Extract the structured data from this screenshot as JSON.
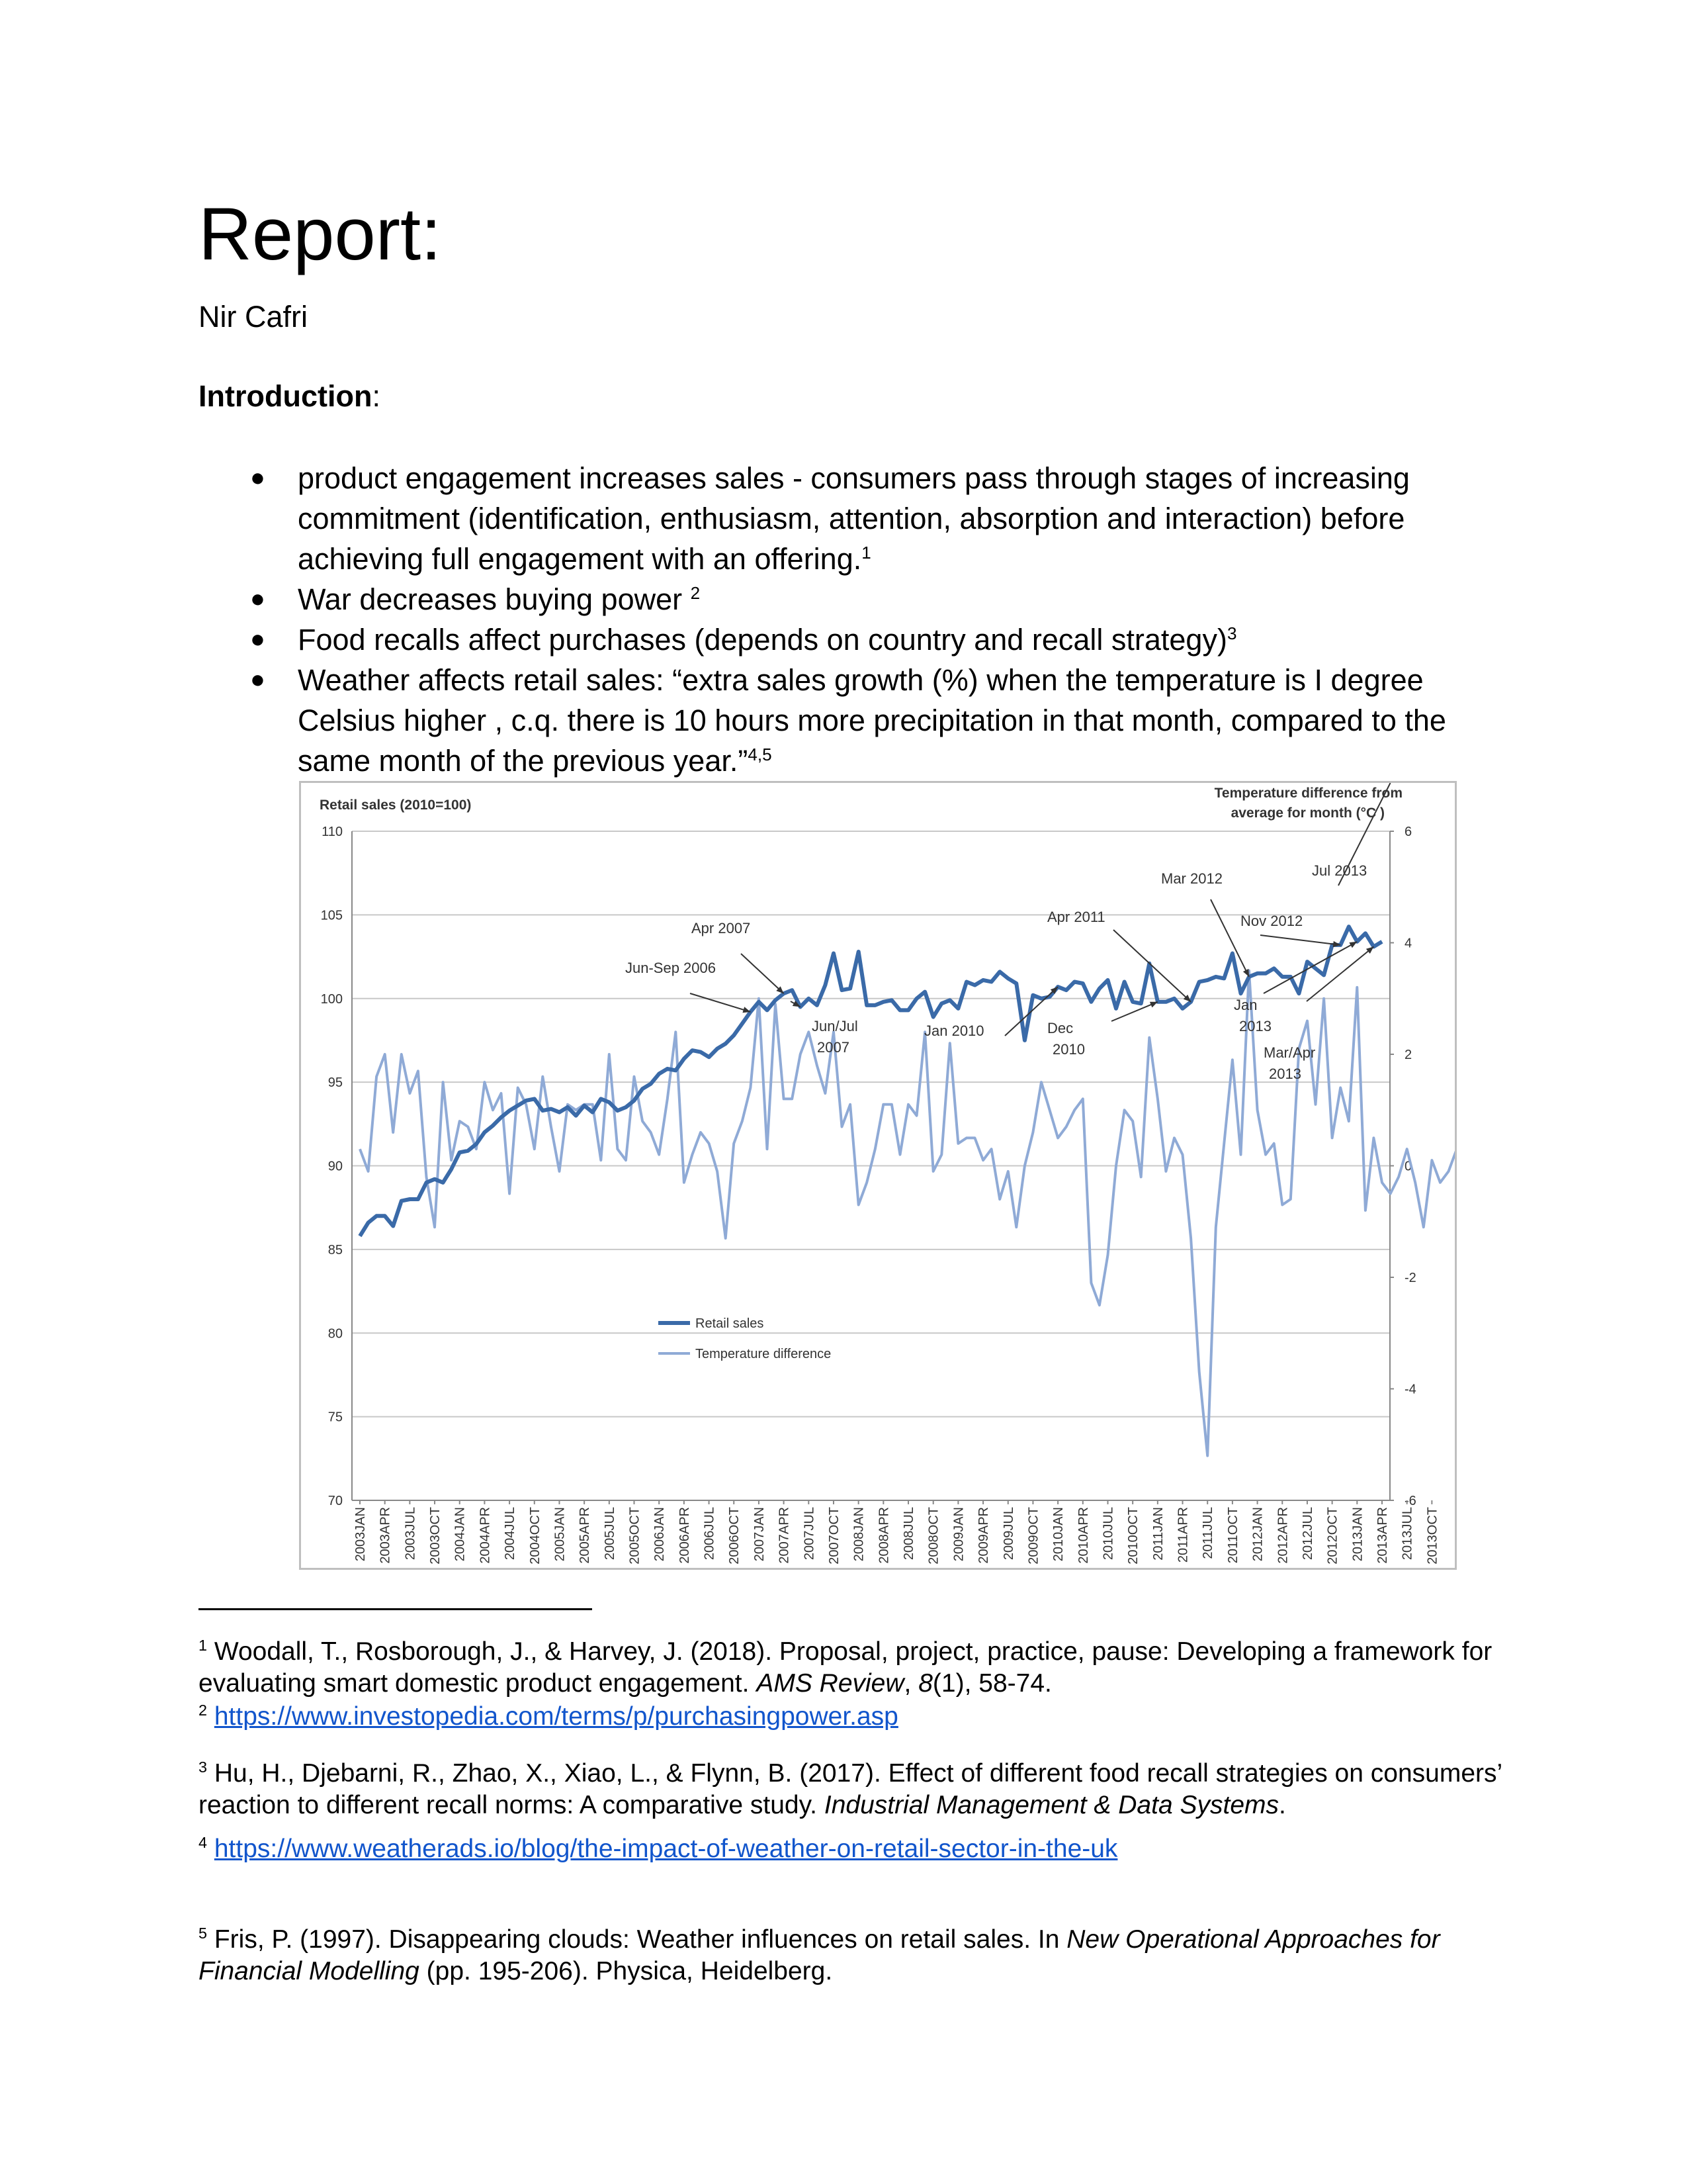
{
  "title": "Report:",
  "author": "Nir Cafri",
  "intro_heading": "Introduction",
  "intro_colon": ":",
  "bullet_glyph": "●",
  "bullets": [
    {
      "text": "product engagement increases sales - consumers pass through stages of increasing commitment (identification, enthusiasm, attention, absorption and interaction) before achieving full engagement with an offering.",
      "sup": "1"
    },
    {
      "text": "War decreases buying power ",
      "sup": "2"
    },
    {
      "text": "Food recalls affect purchases (depends on country and recall strategy)",
      "sup": "3"
    },
    {
      "text": "Weather affects retail sales: “extra sales growth (%) when the temperature is I degree Celsius higher , c.q. there is 10 hours more precipitation in that month, compared to the same month of the previous year.”",
      "sup": "4,5"
    }
  ],
  "chart_data": {
    "type": "line",
    "left_axis_title": "Retail sales (2010=100)",
    "right_axis_title_line1": "Temperature difference from",
    "right_axis_title_line2": "average for month (°C )",
    "y_left_range": [
      70,
      110
    ],
    "y_left_ticks": [
      "70",
      "75",
      "80",
      "85",
      "90",
      "95",
      "100",
      "105",
      "110"
    ],
    "y_right_range": [
      -6,
      6
    ],
    "y_right_ticks": [
      "-6",
      "-4",
      "-2",
      "0",
      "2",
      "4",
      "6"
    ],
    "x_tick_labels": [
      "2003JAN",
      "2003APR",
      "2003JUL",
      "2003OCT",
      "2004JAN",
      "2004APR",
      "2004JUL",
      "2004OCT",
      "2005JAN",
      "2005APR",
      "2005JUL",
      "2005OCT",
      "2006JAN",
      "2006APR",
      "2006JUL",
      "2006OCT",
      "2007JAN",
      "2007APR",
      "2007JUL",
      "2007OCT",
      "2008JAN",
      "2008APR",
      "2008JUL",
      "2008OCT",
      "2009JAN",
      "2009APR",
      "2009JUL",
      "2009OCT",
      "2010JAN",
      "2010APR",
      "2010JUL",
      "2010OCT",
      "2011JAN",
      "2011APR",
      "2011JUL",
      "2011OCT",
      "2012JAN",
      "2012APR",
      "2012JUL",
      "2012OCT",
      "2013JAN",
      "2013APR",
      "2013JUL",
      "2013OCT"
    ],
    "gridlines": "horizontal",
    "legend_position": "bottom-left inside",
    "series": [
      {
        "name": "Retail sales",
        "axis": "left",
        "color": "#3a6aa8",
        "values": [
          85.8,
          86.6,
          87.0,
          87.0,
          86.4,
          87.9,
          88.0,
          88.0,
          89.0,
          89.2,
          89.0,
          89.8,
          90.8,
          90.9,
          91.3,
          92.0,
          92.4,
          92.9,
          93.3,
          93.6,
          93.9,
          94.0,
          93.3,
          93.4,
          93.2,
          93.5,
          93.0,
          93.6,
          93.2,
          94.0,
          93.8,
          93.3,
          93.5,
          93.9,
          94.6,
          94.9,
          95.5,
          95.8,
          95.7,
          96.4,
          96.9,
          96.8,
          96.5,
          97.0,
          97.3,
          97.8,
          98.5,
          99.2,
          99.8,
          99.3,
          99.9,
          100.3,
          100.5,
          99.5,
          100.0,
          99.6,
          100.8,
          102.7,
          100.5,
          100.6,
          102.8,
          99.6,
          99.6,
          99.8,
          99.9,
          99.3,
          99.3,
          100.0,
          100.4,
          98.9,
          99.7,
          99.9,
          99.4,
          101.0,
          100.8,
          101.1,
          101.0,
          101.6,
          101.2,
          100.9,
          97.5,
          100.2,
          100.0,
          100.1,
          100.7,
          100.5,
          101.0,
          100.9,
          99.8,
          100.6,
          101.1,
          99.4,
          101.0,
          99.8,
          99.7,
          102.1,
          99.8,
          99.8,
          100.0,
          99.4,
          99.8,
          101.0,
          101.1,
          101.3,
          101.2,
          102.7,
          100.3,
          101.3,
          101.5,
          101.5,
          101.8,
          101.3,
          101.3,
          100.3,
          102.2,
          101.8,
          101.4,
          103.2,
          103.2,
          104.3,
          103.4,
          103.9,
          103.1,
          103.4
        ]
      },
      {
        "name": "Temperature difference",
        "axis": "right",
        "color": "#8faad6",
        "values": [
          0.3,
          -0.1,
          1.6,
          2.0,
          0.6,
          2.0,
          1.3,
          1.7,
          -0.2,
          -1.1,
          1.5,
          0.1,
          0.8,
          0.7,
          0.3,
          1.5,
          1.0,
          1.3,
          -0.5,
          1.4,
          1.1,
          0.3,
          1.6,
          0.7,
          -0.1,
          1.1,
          1.0,
          1.1,
          1.1,
          0.1,
          2.0,
          0.3,
          0.1,
          1.6,
          0.8,
          0.6,
          0.2,
          1.2,
          2.4,
          -0.3,
          0.2,
          0.6,
          0.4,
          -0.1,
          -1.3,
          0.4,
          0.8,
          1.4,
          3.0,
          0.3,
          2.9,
          1.2,
          1.2,
          2.0,
          2.4,
          1.8,
          1.3,
          2.4,
          0.7,
          1.1,
          -0.7,
          -0.3,
          0.3,
          1.1,
          1.1,
          0.2,
          1.1,
          0.9,
          2.4,
          -0.1,
          0.2,
          2.2,
          0.4,
          0.5,
          0.5,
          0.1,
          0.3,
          -0.6,
          -0.1,
          -1.1,
          0.0,
          0.6,
          1.5,
          1.0,
          0.5,
          0.7,
          1.0,
          1.2,
          -2.1,
          -2.5,
          -1.6,
          0.0,
          1.0,
          0.8,
          -0.2,
          2.3,
          1.2,
          -0.1,
          0.5,
          0.2,
          -1.3,
          -3.7,
          -5.2,
          -1.1,
          0.4,
          1.9,
          0.2,
          3.5,
          1.0,
          0.2,
          0.4,
          -0.7,
          -0.6,
          2.1,
          2.6,
          1.1,
          3.0,
          0.5,
          1.4,
          0.8,
          3.2,
          -0.8,
          0.5,
          -0.3,
          -0.5,
          -0.2,
          0.3,
          -0.3,
          -1.1,
          0.1,
          -0.3,
          -0.1,
          0.3,
          -0.6,
          -3.0,
          -0.7,
          -0.4,
          0.1,
          1.2,
          3.1,
          1.6,
          0.8,
          2.2,
          1.5,
          0.1,
          -0.5,
          -0.4,
          1.1
        ]
      }
    ],
    "annotations": [
      {
        "text": "Jun-Sep 2006"
      },
      {
        "text": "Apr 2007"
      },
      {
        "text": "Jun/Jul",
        "text2": "2007"
      },
      {
        "text": "Jan 2010"
      },
      {
        "text": "Apr 2011"
      },
      {
        "text": "Dec",
        "text2": "2010"
      },
      {
        "text": "Mar 2012"
      },
      {
        "text": "Nov 2012"
      },
      {
        "text": "Jan",
        "text2": "2013"
      },
      {
        "text": "Mar/Apr",
        "text2": "2013"
      },
      {
        "text": "Jul 2013"
      }
    ]
  },
  "footnotes": [
    {
      "num": "1",
      "parts": [
        {
          "t": " Woodall, T., Rosborough, J., & Harvey, J. (2018). Proposal, project, practice, pause: Developing a framework for evaluating smart domestic product engagement. "
        },
        {
          "t": "AMS Review",
          "i": true
        },
        {
          "t": ", "
        },
        {
          "t": "8",
          "i": true
        },
        {
          "t": "(1), 58-74."
        }
      ]
    },
    {
      "num": "2",
      "link": "https://www.investopedia.com/terms/p/purchasingpower.asp"
    },
    {
      "num": "3",
      "parts": [
        {
          "t": " Hu, H., Djebarni, R., Zhao, X., Xiao, L., & Flynn, B. (2017). Effect of different food recall strategies on consumers’ reaction to different recall norms: A comparative study. "
        },
        {
          "t": "Industrial Management & Data Systems",
          "i": true
        },
        {
          "t": "."
        }
      ]
    },
    {
      "num": "4",
      "link": "https://www.weatherads.io/blog/the-impact-of-weather-on-retail-sector-in-the-uk"
    },
    {
      "num": "5",
      "parts": [
        {
          "t": " Fris, P. (1997). Disappearing clouds: Weather influences on retail sales. In "
        },
        {
          "t": "New Operational Approaches for Financial Modelling",
          "i": true
        },
        {
          "t": " (pp. 195-206). Physica, Heidelberg."
        }
      ]
    }
  ]
}
